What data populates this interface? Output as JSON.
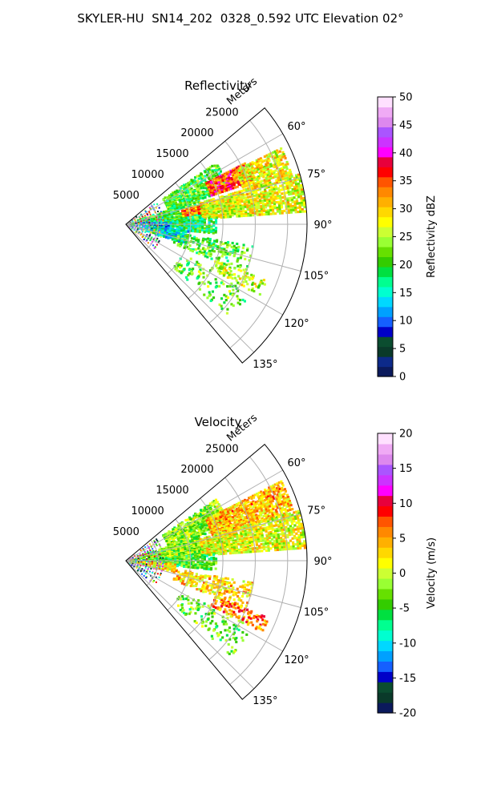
{
  "figure_title": "SKYLER-HU  SN14_202  0328_0.592 UTC Elevation 02°",
  "chart_data": [
    {
      "type": "heatmap",
      "subtype": "polar-sector",
      "title": "Reflectivity",
      "radial_label": "Meters",
      "radial_ticks": [
        "5000",
        "10000",
        "15000",
        "20000",
        "25000"
      ],
      "radial_tick_values": [
        5000,
        10000,
        15000,
        20000,
        25000
      ],
      "r_max": 28000,
      "azimuth_range": [
        50,
        140
      ],
      "azimuth_ticks": [
        "60°",
        "75°",
        "90°",
        "105°",
        "120°",
        "135°"
      ],
      "azimuth_tick_values": [
        60,
        75,
        90,
        105,
        120,
        135
      ],
      "colorbar": {
        "label": "Reflectivity dBZ",
        "min": 0,
        "max": 50,
        "ticks": [
          "0",
          "5",
          "10",
          "15",
          "20",
          "25",
          "30",
          "35",
          "40",
          "45",
          "50"
        ],
        "tick_values": [
          0,
          5,
          10,
          15,
          20,
          25,
          30,
          35,
          40,
          45,
          50
        ]
      },
      "palette": [
        "#0b1a5c",
        "#0d2a8a",
        "#0a3a2a",
        "#0b4d30",
        "#0000c8",
        "#1560ff",
        "#00a0ff",
        "#00d8ff",
        "#00ffd0",
        "#00ff90",
        "#00e040",
        "#33cc00",
        "#66e000",
        "#99ff33",
        "#ccff33",
        "#ffff00",
        "#ffd800",
        "#ffb000",
        "#ff8800",
        "#ff5500",
        "#ff0000",
        "#e8003c",
        "#ff00ff",
        "#cc33ff",
        "#aa55ff",
        "#dd88ee",
        "#f0aaf5",
        "#ffe0ff"
      ],
      "field_regions": [
        {
          "az": [
            56,
            72
          ],
          "r": [
            7000,
            17000
          ],
          "value": 21,
          "density": 0.55
        },
        {
          "az": [
            63,
            72
          ],
          "r": [
            14000,
            21000
          ],
          "value": 35,
          "density": 0.8
        },
        {
          "az": [
            64,
            74
          ],
          "r": [
            19000,
            27000
          ],
          "value": 28,
          "density": 0.75
        },
        {
          "az": [
            72,
            88
          ],
          "r": [
            2000,
            12000
          ],
          "value": 20,
          "density": 0.6
        },
        {
          "az": [
            76,
            82
          ],
          "r": [
            9000,
            13000
          ],
          "value": 33,
          "density": 0.8
        },
        {
          "az": [
            74,
            86
          ],
          "r": [
            12000,
            28000
          ],
          "value": 27,
          "density": 0.8
        },
        {
          "az": [
            86,
            96
          ],
          "r": [
            1000,
            14000
          ],
          "value": 18,
          "density": 0.55
        },
        {
          "az": [
            88,
            100
          ],
          "r": [
            1000,
            7000
          ],
          "value": 13,
          "density": 0.5
        },
        {
          "az": [
            96,
            108
          ],
          "r": [
            2000,
            10000
          ],
          "value": 15,
          "density": 0.45
        },
        {
          "az": [
            100,
            112
          ],
          "r": [
            8000,
            20000
          ],
          "value": 21,
          "density": 0.3
        },
        {
          "az": [
            112,
            118
          ],
          "r": [
            15000,
            24000
          ],
          "value": 26,
          "density": 0.35
        },
        {
          "az": [
            118,
            132
          ],
          "r": [
            10000,
            22000
          ],
          "value": 22,
          "density": 0.15
        }
      ]
    },
    {
      "type": "heatmap",
      "subtype": "polar-sector",
      "title": "Velocity",
      "radial_label": "Meters",
      "radial_ticks": [
        "5000",
        "10000",
        "15000",
        "20000",
        "25000"
      ],
      "radial_tick_values": [
        5000,
        10000,
        15000,
        20000,
        25000
      ],
      "r_max": 28000,
      "azimuth_range": [
        50,
        140
      ],
      "azimuth_ticks": [
        "60°",
        "75°",
        "90°",
        "105°",
        "120°",
        "135°"
      ],
      "azimuth_tick_values": [
        60,
        75,
        90,
        105,
        120,
        135
      ],
      "colorbar": {
        "label": "Velocity (m/s)",
        "min": -20,
        "max": 20,
        "ticks": [
          "-20",
          "-15",
          "-10",
          "-5",
          "0",
          "5",
          "10",
          "15",
          "20"
        ],
        "tick_values": [
          -20,
          -15,
          -10,
          -5,
          0,
          5,
          10,
          15,
          20
        ]
      },
      "palette": [
        "#0b1a5c",
        "#0a3a2a",
        "#0b4d30",
        "#0000c8",
        "#1560ff",
        "#00a0ff",
        "#00d8ff",
        "#00ffd0",
        "#00ff90",
        "#00e040",
        "#33cc00",
        "#66e000",
        "#99ff33",
        "#ccff33",
        "#ffff00",
        "#ffd800",
        "#ffb000",
        "#ff8800",
        "#ff5500",
        "#ff0000",
        "#e8003c",
        "#ff00ff",
        "#cc33ff",
        "#aa55ff",
        "#dd88ee",
        "#f0aaf5",
        "#ffe0ff"
      ],
      "field_regions": [
        {
          "az": [
            56,
            72
          ],
          "r": [
            7000,
            17000
          ],
          "value": -2,
          "density": 0.55
        },
        {
          "az": [
            63,
            74
          ],
          "r": [
            14000,
            27000
          ],
          "value": 4,
          "density": 0.8
        },
        {
          "az": [
            72,
            88
          ],
          "r": [
            2000,
            12000
          ],
          "value": -2,
          "density": 0.65
        },
        {
          "az": [
            74,
            86
          ],
          "r": [
            12000,
            28000
          ],
          "value": 1,
          "density": 0.8
        },
        {
          "az": [
            86,
            96
          ],
          "r": [
            1000,
            14000
          ],
          "value": -4,
          "density": 0.55
        },
        {
          "az": [
            94,
            104
          ],
          "r": [
            1000,
            8000
          ],
          "value": 2,
          "density": 0.45
        },
        {
          "az": [
            100,
            112
          ],
          "r": [
            8000,
            20000
          ],
          "value": 3,
          "density": 0.3
        },
        {
          "az": [
            112,
            118
          ],
          "r": [
            15000,
            24000
          ],
          "value": 6,
          "density": 0.35
        },
        {
          "az": [
            118,
            132
          ],
          "r": [
            10000,
            22000
          ],
          "value": -3,
          "density": 0.15
        }
      ]
    }
  ]
}
